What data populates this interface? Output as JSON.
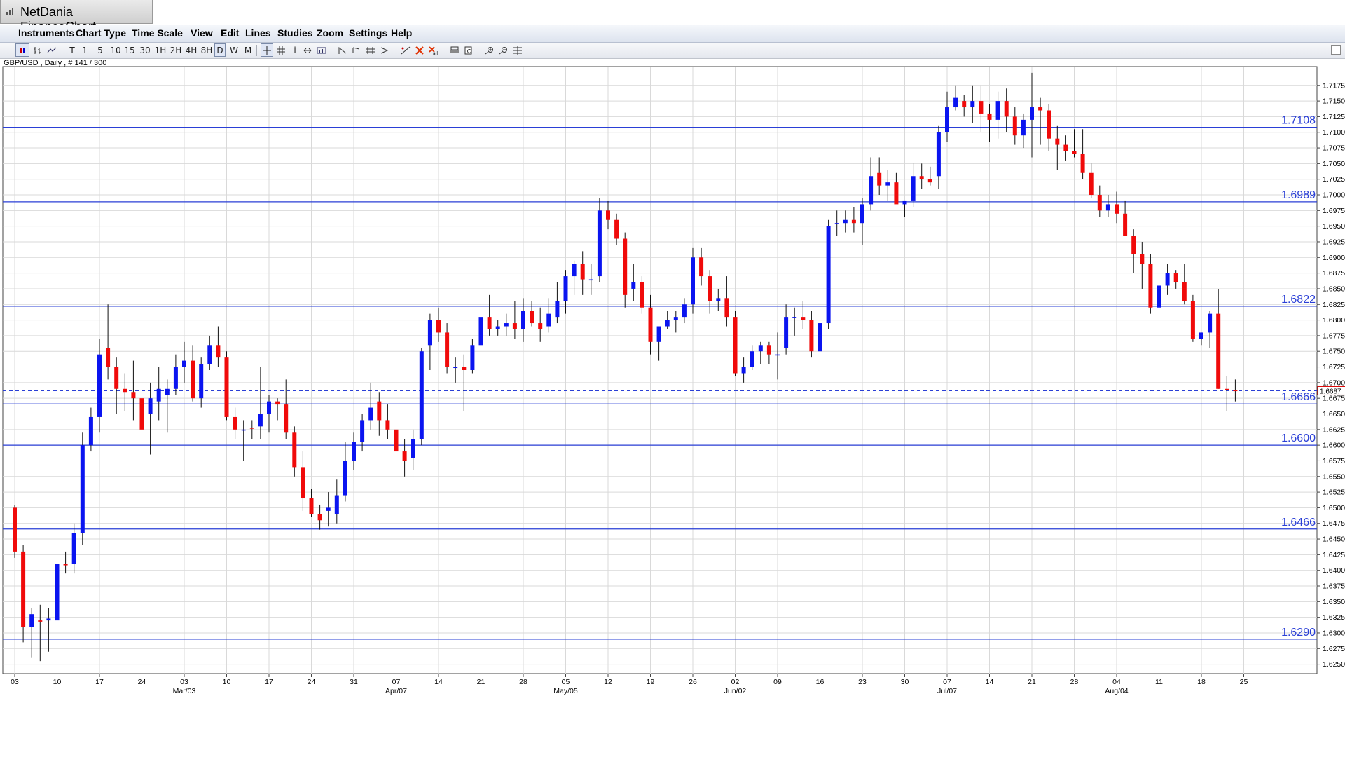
{
  "window": {
    "title": "NetDania FinanceChart",
    "menu": [
      "Instruments",
      "Chart Type",
      "Time Scale",
      "View",
      "Edit",
      "Lines",
      "Studies",
      "Zoom",
      "Settings",
      "Help"
    ]
  },
  "toolbar": {
    "timeframes": [
      "T",
      "1",
      "5",
      "10",
      "15",
      "30",
      "1H",
      "2H",
      "4H",
      "8H",
      "D",
      "W",
      "M"
    ],
    "active_timeframe": "D"
  },
  "instrument_label": "GBP/USD , Daily , # 141 / 300",
  "colors": {
    "up": "#0a14f0",
    "down": "#f00a0a",
    "level_line": "#2a3fd6",
    "grid": "#d9d9d9",
    "current_price_line": "#2a3fd6"
  },
  "chart_data": {
    "type": "candlestick",
    "symbol": "GBP/USD",
    "ylim": [
      1.6235,
      1.7205
    ],
    "y_ticks": [
      "1.6250",
      "1.6275",
      "1.6300",
      "1.6325",
      "1.6350",
      "1.6375",
      "1.6400",
      "1.6425",
      "1.6450",
      "1.6475",
      "1.6500",
      "1.6525",
      "1.6550",
      "1.6575",
      "1.6600",
      "1.6625",
      "1.6650",
      "1.6675",
      "1.6700",
      "1.6725",
      "1.6750",
      "1.6775",
      "1.6800",
      "1.6825",
      "1.6850",
      "1.6875",
      "1.6900",
      "1.6925",
      "1.6950",
      "1.6975",
      "1.7000",
      "1.7025",
      "1.7050",
      "1.7075",
      "1.7100",
      "1.7125",
      "1.7150",
      "1.7175"
    ],
    "x_day_ticks": [
      {
        "i": 0,
        "label": "03"
      },
      {
        "i": 5,
        "label": "10"
      },
      {
        "i": 10,
        "label": "17"
      },
      {
        "i": 15,
        "label": "24"
      },
      {
        "i": 20,
        "label": "03"
      },
      {
        "i": 25,
        "label": "10"
      },
      {
        "i": 30,
        "label": "17"
      },
      {
        "i": 35,
        "label": "24"
      },
      {
        "i": 40,
        "label": "31"
      },
      {
        "i": 45,
        "label": "07"
      },
      {
        "i": 50,
        "label": "14"
      },
      {
        "i": 55,
        "label": "21"
      },
      {
        "i": 60,
        "label": "28"
      },
      {
        "i": 65,
        "label": "05"
      },
      {
        "i": 70,
        "label": "12"
      },
      {
        "i": 75,
        "label": "19"
      },
      {
        "i": 80,
        "label": "26"
      },
      {
        "i": 85,
        "label": "02"
      },
      {
        "i": 90,
        "label": "09"
      },
      {
        "i": 95,
        "label": "16"
      },
      {
        "i": 100,
        "label": "23"
      },
      {
        "i": 105,
        "label": "30"
      },
      {
        "i": 110,
        "label": "07"
      },
      {
        "i": 115,
        "label": "14"
      },
      {
        "i": 120,
        "label": "21"
      },
      {
        "i": 125,
        "label": "28"
      },
      {
        "i": 130,
        "label": "04"
      },
      {
        "i": 135,
        "label": "11"
      },
      {
        "i": 140,
        "label": "18"
      },
      {
        "i": 145,
        "label": "25"
      }
    ],
    "x_month_ticks": [
      {
        "i": 20,
        "label": "Mar/03"
      },
      {
        "i": 45,
        "label": "Apr/07"
      },
      {
        "i": 65,
        "label": "May/05"
      },
      {
        "i": 85,
        "label": "Jun/02"
      },
      {
        "i": 110,
        "label": "Jul/07"
      },
      {
        "i": 130,
        "label": "Aug/04"
      }
    ],
    "levels": [
      "1.7108",
      "1.6989",
      "1.6822",
      "1.6666",
      "1.6600",
      "1.6466",
      "1.6290"
    ],
    "current_price": "1.6687",
    "candles": [
      [
        1.65,
        1.6505,
        1.642,
        1.643
      ],
      [
        1.643,
        1.644,
        1.6285,
        1.631
      ],
      [
        1.631,
        1.634,
        1.626,
        1.633
      ],
      [
        1.632,
        1.6345,
        1.6255,
        1.6318
      ],
      [
        1.632,
        1.634,
        1.627,
        1.6323
      ],
      [
        1.632,
        1.6425,
        1.63,
        1.641
      ],
      [
        1.641,
        1.643,
        1.6395,
        1.6408
      ],
      [
        1.641,
        1.6475,
        1.6395,
        1.646
      ],
      [
        1.646,
        1.662,
        1.644,
        1.66
      ],
      [
        1.66,
        1.666,
        1.659,
        1.6645
      ],
      [
        1.6645,
        1.677,
        1.662,
        1.6745
      ],
      [
        1.6755,
        1.6825,
        1.6705,
        1.6725
      ],
      [
        1.6725,
        1.674,
        1.665,
        1.669
      ],
      [
        1.669,
        1.6715,
        1.6655,
        1.6685
      ],
      [
        1.6685,
        1.6735,
        1.664,
        1.6675
      ],
      [
        1.6675,
        1.6705,
        1.6605,
        1.6625
      ],
      [
        1.665,
        1.67,
        1.6585,
        1.6675
      ],
      [
        1.667,
        1.6725,
        1.664,
        1.669
      ],
      [
        1.668,
        1.6705,
        1.662,
        1.669
      ],
      [
        1.669,
        1.6745,
        1.668,
        1.6725
      ],
      [
        1.6725,
        1.6765,
        1.67,
        1.6735
      ],
      [
        1.6735,
        1.676,
        1.667,
        1.6675
      ],
      [
        1.6675,
        1.674,
        1.666,
        1.673
      ],
      [
        1.673,
        1.6775,
        1.672,
        1.676
      ],
      [
        1.676,
        1.679,
        1.6725,
        1.674
      ],
      [
        1.674,
        1.675,
        1.664,
        1.6645
      ],
      [
        1.6645,
        1.666,
        1.661,
        1.6625
      ],
      [
        1.6625,
        1.664,
        1.6575,
        1.6625
      ],
      [
        1.6628,
        1.664,
        1.661,
        1.6627
      ],
      [
        1.663,
        1.6725,
        1.661,
        1.665
      ],
      [
        1.665,
        1.668,
        1.662,
        1.667
      ],
      [
        1.667,
        1.6675,
        1.664,
        1.6665
      ],
      [
        1.6665,
        1.6705,
        1.661,
        1.662
      ],
      [
        1.662,
        1.663,
        1.655,
        1.6565
      ],
      [
        1.6565,
        1.659,
        1.6495,
        1.6515
      ],
      [
        1.6515,
        1.653,
        1.6485,
        1.649
      ],
      [
        1.649,
        1.6505,
        1.6465,
        1.648
      ],
      [
        1.6495,
        1.6525,
        1.647,
        1.65
      ],
      [
        1.649,
        1.6545,
        1.6475,
        1.652
      ],
      [
        1.652,
        1.6605,
        1.651,
        1.6575
      ],
      [
        1.6575,
        1.662,
        1.656,
        1.6605
      ],
      [
        1.6605,
        1.665,
        1.659,
        1.664
      ],
      [
        1.664,
        1.67,
        1.6625,
        1.666
      ],
      [
        1.667,
        1.6685,
        1.6615,
        1.664
      ],
      [
        1.664,
        1.6665,
        1.661,
        1.6625
      ],
      [
        1.6625,
        1.667,
        1.658,
        1.659
      ],
      [
        1.659,
        1.661,
        1.655,
        1.6575
      ],
      [
        1.658,
        1.6625,
        1.656,
        1.661
      ],
      [
        1.661,
        1.6755,
        1.66,
        1.675
      ],
      [
        1.676,
        1.681,
        1.672,
        1.68
      ],
      [
        1.68,
        1.682,
        1.6765,
        1.678
      ],
      [
        1.678,
        1.6795,
        1.6715,
        1.6725
      ],
      [
        1.6725,
        1.674,
        1.67,
        1.6725
      ],
      [
        1.6725,
        1.6745,
        1.6655,
        1.672
      ],
      [
        1.672,
        1.677,
        1.6715,
        1.676
      ],
      [
        1.676,
        1.682,
        1.6755,
        1.6805
      ],
      [
        1.6805,
        1.684,
        1.6775,
        1.6785
      ],
      [
        1.6785,
        1.68,
        1.6775,
        1.679
      ],
      [
        1.679,
        1.681,
        1.6775,
        1.6795
      ],
      [
        1.6795,
        1.683,
        1.677,
        1.6785
      ],
      [
        1.6785,
        1.6835,
        1.6765,
        1.6815
      ],
      [
        1.6815,
        1.683,
        1.679,
        1.6795
      ],
      [
        1.6795,
        1.682,
        1.6765,
        1.6785
      ],
      [
        1.679,
        1.6835,
        1.678,
        1.681
      ],
      [
        1.6805,
        1.686,
        1.6795,
        1.683
      ],
      [
        1.683,
        1.688,
        1.681,
        1.687
      ],
      [
        1.687,
        1.6895,
        1.684,
        1.689
      ],
      [
        1.689,
        1.691,
        1.684,
        1.6865
      ],
      [
        1.6865,
        1.689,
        1.684,
        1.6865
      ],
      [
        1.687,
        1.6995,
        1.686,
        1.6975
      ],
      [
        1.6975,
        1.699,
        1.6945,
        1.696
      ],
      [
        1.696,
        1.697,
        1.692,
        1.693
      ],
      [
        1.693,
        1.694,
        1.682,
        1.684
      ],
      [
        1.685,
        1.689,
        1.683,
        1.686
      ],
      [
        1.686,
        1.687,
        1.681,
        1.682
      ],
      [
        1.682,
        1.684,
        1.6745,
        1.6765
      ],
      [
        1.6765,
        1.6785,
        1.6735,
        1.679
      ],
      [
        1.679,
        1.6815,
        1.6785,
        1.68
      ],
      [
        1.68,
        1.6815,
        1.678,
        1.6805
      ],
      [
        1.6805,
        1.6835,
        1.6795,
        1.6825
      ],
      [
        1.6825,
        1.6915,
        1.681,
        1.69
      ],
      [
        1.69,
        1.6915,
        1.6855,
        1.687
      ],
      [
        1.687,
        1.688,
        1.681,
        1.683
      ],
      [
        1.683,
        1.685,
        1.6815,
        1.6835
      ],
      [
        1.6835,
        1.687,
        1.679,
        1.6805
      ],
      [
        1.6805,
        1.6815,
        1.671,
        1.6715
      ],
      [
        1.6715,
        1.674,
        1.67,
        1.6725
      ],
      [
        1.6725,
        1.676,
        1.672,
        1.675
      ],
      [
        1.675,
        1.6765,
        1.673,
        1.676
      ],
      [
        1.676,
        1.6765,
        1.673,
        1.6745
      ],
      [
        1.6745,
        1.678,
        1.6705,
        1.6745
      ],
      [
        1.6755,
        1.6825,
        1.6745,
        1.6805
      ],
      [
        1.6805,
        1.682,
        1.6775,
        1.6805
      ],
      [
        1.6805,
        1.683,
        1.6785,
        1.68
      ],
      [
        1.68,
        1.6815,
        1.674,
        1.675
      ],
      [
        1.675,
        1.68,
        1.674,
        1.6795
      ],
      [
        1.6795,
        1.696,
        1.6785,
        1.695
      ],
      [
        1.6955,
        1.6975,
        1.6935,
        1.6955
      ],
      [
        1.6955,
        1.6975,
        1.694,
        1.696
      ],
      [
        1.696,
        1.698,
        1.694,
        1.6955
      ],
      [
        1.6955,
        1.6995,
        1.692,
        1.6985
      ],
      [
        1.6985,
        1.706,
        1.6975,
        1.703
      ],
      [
        1.7035,
        1.706,
        1.7,
        1.7015
      ],
      [
        1.7015,
        1.704,
        1.699,
        1.702
      ],
      [
        1.702,
        1.7035,
        1.699,
        1.6985
      ],
      [
        1.6985,
        1.699,
        1.6965,
        1.699
      ],
      [
        1.699,
        1.705,
        1.698,
        1.703
      ],
      [
        1.703,
        1.705,
        1.701,
        1.7025
      ],
      [
        1.7025,
        1.7045,
        1.7015,
        1.702
      ],
      [
        1.703,
        1.711,
        1.701,
        1.71
      ],
      [
        1.71,
        1.7165,
        1.7085,
        1.714
      ],
      [
        1.714,
        1.7175,
        1.7135,
        1.7155
      ],
      [
        1.715,
        1.716,
        1.7125,
        1.714
      ],
      [
        1.714,
        1.7175,
        1.7115,
        1.715
      ],
      [
        1.715,
        1.7175,
        1.71,
        1.713
      ],
      [
        1.713,
        1.7145,
        1.7085,
        1.712
      ],
      [
        1.712,
        1.7165,
        1.709,
        1.715
      ],
      [
        1.715,
        1.717,
        1.71,
        1.7125
      ],
      [
        1.7125,
        1.714,
        1.708,
        1.7095
      ],
      [
        1.7095,
        1.713,
        1.7075,
        1.712
      ],
      [
        1.712,
        1.7195,
        1.706,
        1.714
      ],
      [
        1.714,
        1.7155,
        1.708,
        1.7135
      ],
      [
        1.7135,
        1.7145,
        1.707,
        1.709
      ],
      [
        1.709,
        1.711,
        1.704,
        1.708
      ],
      [
        1.708,
        1.7095,
        1.7055,
        1.707
      ],
      [
        1.707,
        1.7105,
        1.706,
        1.7065
      ],
      [
        1.7065,
        1.7105,
        1.7025,
        1.7035
      ],
      [
        1.7035,
        1.705,
        1.6995,
        1.7
      ],
      [
        1.7,
        1.7015,
        1.6965,
        1.6975
      ],
      [
        1.6975,
        1.7,
        1.6965,
        1.6985
      ],
      [
        1.6985,
        1.7005,
        1.6955,
        1.697
      ],
      [
        1.697,
        1.699,
        1.6935,
        1.6935
      ],
      [
        1.6935,
        1.6945,
        1.6875,
        1.6905
      ],
      [
        1.6905,
        1.6925,
        1.685,
        1.689
      ],
      [
        1.689,
        1.6905,
        1.681,
        1.682
      ],
      [
        1.682,
        1.687,
        1.681,
        1.6855
      ],
      [
        1.6855,
        1.689,
        1.684,
        1.6875
      ],
      [
        1.6875,
        1.688,
        1.685,
        1.686
      ],
      [
        1.686,
        1.689,
        1.6825,
        1.683
      ],
      [
        1.683,
        1.684,
        1.6765,
        1.677
      ],
      [
        1.677,
        1.678,
        1.676,
        1.678
      ],
      [
        1.678,
        1.6815,
        1.6755,
        1.681
      ],
      [
        1.681,
        1.685,
        1.669,
        1.669
      ],
      [
        1.669,
        1.671,
        1.6655,
        1.6688
      ],
      [
        1.6688,
        1.6705,
        1.667,
        1.6687
      ]
    ]
  }
}
